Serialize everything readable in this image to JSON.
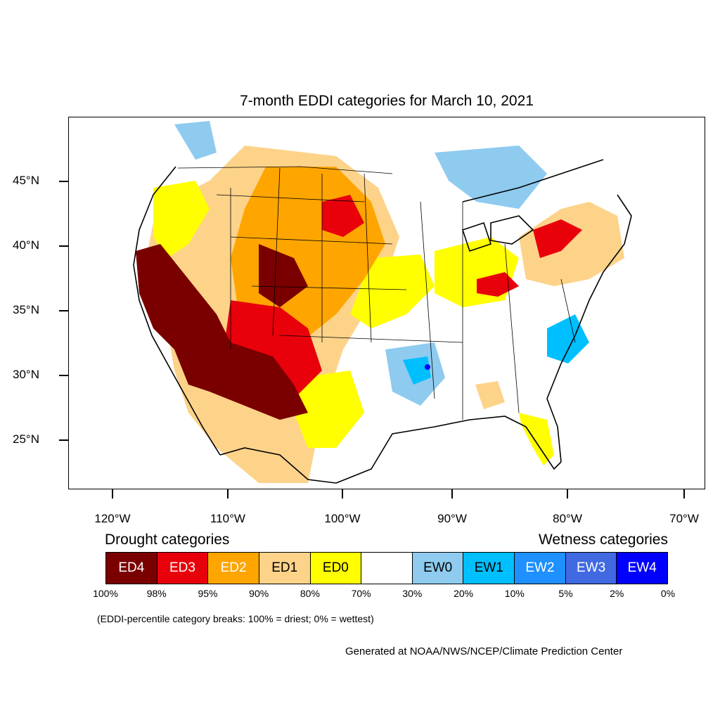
{
  "title": "7-month EDDI categories for March 10, 2021",
  "lat_labels": [
    "45°N",
    "40°N",
    "35°N",
    "30°N",
    "25°N"
  ],
  "lon_labels": [
    "120°W",
    "110°W",
    "100°W",
    "90°W",
    "80°W",
    "70°W"
  ],
  "legend": {
    "drought_title": "Drought categories",
    "wetness_title": "Wetness categories",
    "categories": [
      {
        "label": "ED4",
        "color": "#7a0000",
        "text_color": "#ffffff"
      },
      {
        "label": "ED3",
        "color": "#e8000b",
        "text_color": "#ffffff"
      },
      {
        "label": "ED2",
        "color": "#ffa500",
        "text_color": "#ffffff"
      },
      {
        "label": "ED1",
        "color": "#fdd38a",
        "text_color": "#000000"
      },
      {
        "label": "ED0",
        "color": "#ffff00",
        "text_color": "#000000"
      },
      {
        "label": "",
        "color": "#ffffff",
        "text_color": "#000000"
      },
      {
        "label": "EW0",
        "color": "#8ecbef",
        "text_color": "#000000"
      },
      {
        "label": "EW1",
        "color": "#00bfff",
        "text_color": "#000000"
      },
      {
        "label": "EW2",
        "color": "#1e90ff",
        "text_color": "#ffffff"
      },
      {
        "label": "EW3",
        "color": "#4169e1",
        "text_color": "#ffffff"
      },
      {
        "label": "EW4",
        "color": "#0000ff",
        "text_color": "#ffffff"
      }
    ],
    "percent_breaks": [
      "100%",
      "98%",
      "95%",
      "90%",
      "80%",
      "70%",
      "30%",
      "20%",
      "10%",
      "5%",
      "2%",
      "0%"
    ]
  },
  "note": "(EDDI-percentile category breaks: 100% = driest; 0% = wettest)",
  "credit": "Generated at NOAA/NWS/NCEP/Climate Prediction Center"
}
